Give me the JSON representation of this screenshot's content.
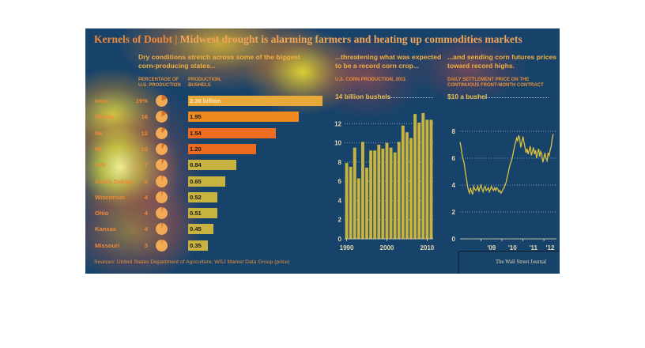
{
  "title": "Kernels of Doubt",
  "subtitle": "Midwest drought is alarming farmers and heating up commodities markets",
  "sections": {
    "states_heading": "Dry conditions stretch across some of the biggest corn-producing states...",
    "pct_header": "PERCENTAGE OF U.S. PRODUCTION",
    "prod_header": "PRODUCTION, BUSHELS",
    "production_heading": "...threatening what was expected to be a record corn crop...",
    "production_subheader": "U.S. CORN PRODUCTION, 2011",
    "production_unit": "14 billion bushels",
    "futures_heading": "...and sending corn futures prices toward record highs.",
    "futures_subheader": "DAILY SETTLEMENT PRICE ON THE CONTINUOUS FRONT-MONTH CONTRACT",
    "futures_unit": "$10 a bushel"
  },
  "source": "Sources: United States Department of Agriculture; WSJ Market Data Group (price)",
  "credit": "The Wall Street Journal",
  "colors": {
    "background": "#17436b",
    "bar_gold": "#c8b340",
    "accent_orange": "#ee8b37",
    "line": "#d9c23e"
  },
  "chart_data": [
    {
      "type": "bar",
      "orientation": "horizontal",
      "title": "Dry conditions stretch across some of the biggest corn-producing states...",
      "categories": [
        "Iowa",
        "Illinois",
        "Nebraska",
        "Minnesota",
        "Indiana",
        "South Dakota",
        "Wisconsin",
        "Ohio",
        "Kansas",
        "Missouri"
      ],
      "state_labels": [
        "Iowa",
        "Illinois",
        "Ne",
        "Mi",
        "Indi",
        "South Dakota",
        "Wisconsin",
        "Ohio",
        "Kansas",
        "Missouri"
      ],
      "pct_labels": [
        "19%",
        "16",
        "12",
        "10",
        "7",
        "5",
        "4",
        "4",
        "4",
        "3"
      ],
      "pct_of_us_production": [
        19,
        16,
        12,
        10,
        7,
        5,
        4,
        4,
        4,
        3
      ],
      "value_labels": [
        "2.36 billion",
        "1.95",
        "1.54",
        "1.20",
        "0.84",
        "0.65",
        "0.52",
        "0.51",
        "0.45",
        "0.35"
      ],
      "production_billion_bushels": [
        2.36,
        1.95,
        1.54,
        1.2,
        0.84,
        0.65,
        0.52,
        0.51,
        0.45,
        0.35
      ]
    },
    {
      "type": "bar",
      "title": "...threatening what was expected to be a record corn crop...",
      "x": [
        1990,
        1991,
        1992,
        1993,
        1994,
        1995,
        1996,
        1997,
        1998,
        1999,
        2000,
        2001,
        2002,
        2003,
        2004,
        2005,
        2006,
        2007,
        2008,
        2009,
        2010,
        2011
      ],
      "values": [
        7.9,
        7.5,
        9.5,
        6.3,
        10.1,
        7.4,
        9.2,
        9.2,
        9.8,
        9.4,
        10.0,
        9.5,
        9.0,
        10.1,
        11.8,
        11.1,
        10.5,
        13.0,
        12.1,
        13.1,
        12.4,
        12.4
      ],
      "ylim": [
        0,
        14
      ],
      "yticks": [
        0,
        2,
        4,
        6,
        8,
        10,
        12
      ],
      "xtick_labels": [
        "1990",
        "2000",
        "2010"
      ]
    },
    {
      "type": "line",
      "title": "...and sending corn futures prices toward record highs.",
      "x_start": 2008,
      "x_end": 2012.6,
      "ylim": [
        0,
        10
      ],
      "yticks": [
        0,
        2,
        4,
        6,
        8
      ],
      "xtick_labels": [
        "'09",
        "'10",
        "'11",
        "'12"
      ],
      "points": [
        [
          2008.0,
          7.2
        ],
        [
          2008.05,
          6.8
        ],
        [
          2008.1,
          6.2
        ],
        [
          2008.15,
          5.9
        ],
        [
          2008.2,
          5.6
        ],
        [
          2008.25,
          5.0
        ],
        [
          2008.3,
          4.5
        ],
        [
          2008.35,
          4.0
        ],
        [
          2008.4,
          3.6
        ],
        [
          2008.45,
          3.4
        ],
        [
          2008.5,
          3.8
        ],
        [
          2008.55,
          3.5
        ],
        [
          2008.6,
          3.3
        ],
        [
          2008.65,
          3.9
        ],
        [
          2008.7,
          3.7
        ],
        [
          2008.75,
          3.6
        ],
        [
          2008.8,
          3.7
        ],
        [
          2008.85,
          3.9
        ],
        [
          2008.9,
          3.5
        ],
        [
          2008.95,
          3.8
        ],
        [
          2009.0,
          4.0
        ],
        [
          2009.05,
          3.7
        ],
        [
          2009.1,
          3.5
        ],
        [
          2009.15,
          3.8
        ],
        [
          2009.2,
          3.9
        ],
        [
          2009.25,
          3.6
        ],
        [
          2009.3,
          3.7
        ],
        [
          2009.35,
          3.8
        ],
        [
          2009.4,
          3.5
        ],
        [
          2009.45,
          3.7
        ],
        [
          2009.5,
          3.9
        ],
        [
          2009.55,
          3.7
        ],
        [
          2009.6,
          3.6
        ],
        [
          2009.65,
          3.8
        ],
        [
          2009.7,
          3.6
        ],
        [
          2009.75,
          3.8
        ],
        [
          2009.8,
          3.7
        ],
        [
          2009.85,
          3.5
        ],
        [
          2009.9,
          3.6
        ],
        [
          2009.95,
          3.4
        ],
        [
          2010.0,
          3.5
        ],
        [
          2010.05,
          3.7
        ],
        [
          2010.1,
          3.8
        ],
        [
          2010.15,
          4.0
        ],
        [
          2010.2,
          4.2
        ],
        [
          2010.25,
          4.6
        ],
        [
          2010.3,
          4.9
        ],
        [
          2010.35,
          5.3
        ],
        [
          2010.4,
          5.6
        ],
        [
          2010.45,
          5.8
        ],
        [
          2010.5,
          6.1
        ],
        [
          2010.55,
          6.5
        ],
        [
          2010.6,
          6.9
        ],
        [
          2010.65,
          7.2
        ],
        [
          2010.7,
          7.5
        ],
        [
          2010.75,
          7.3
        ],
        [
          2010.8,
          7.7
        ],
        [
          2010.85,
          7.4
        ],
        [
          2010.9,
          6.8
        ],
        [
          2010.95,
          7.2
        ],
        [
          2011.0,
          7.6
        ],
        [
          2011.05,
          7.2
        ],
        [
          2011.1,
          6.8
        ],
        [
          2011.15,
          6.4
        ],
        [
          2011.2,
          6.7
        ],
        [
          2011.25,
          6.3
        ],
        [
          2011.3,
          6.6
        ],
        [
          2011.35,
          6.9
        ],
        [
          2011.4,
          6.2
        ],
        [
          2011.45,
          6.5
        ],
        [
          2011.5,
          6.8
        ],
        [
          2011.55,
          6.3
        ],
        [
          2011.6,
          6.6
        ],
        [
          2011.65,
          6.0
        ],
        [
          2011.7,
          6.4
        ],
        [
          2011.75,
          6.7
        ],
        [
          2011.8,
          6.1
        ],
        [
          2011.85,
          6.5
        ],
        [
          2011.9,
          6.3
        ],
        [
          2011.95,
          5.7
        ],
        [
          2012.0,
          6.0
        ],
        [
          2012.05,
          6.4
        ],
        [
          2012.1,
          6.0
        ],
        [
          2012.15,
          5.8
        ],
        [
          2012.2,
          6.4
        ],
        [
          2012.25,
          6.2
        ],
        [
          2012.3,
          6.6
        ],
        [
          2012.35,
          6.9
        ],
        [
          2012.4,
          7.5
        ],
        [
          2012.45,
          7.8
        ]
      ]
    }
  ]
}
